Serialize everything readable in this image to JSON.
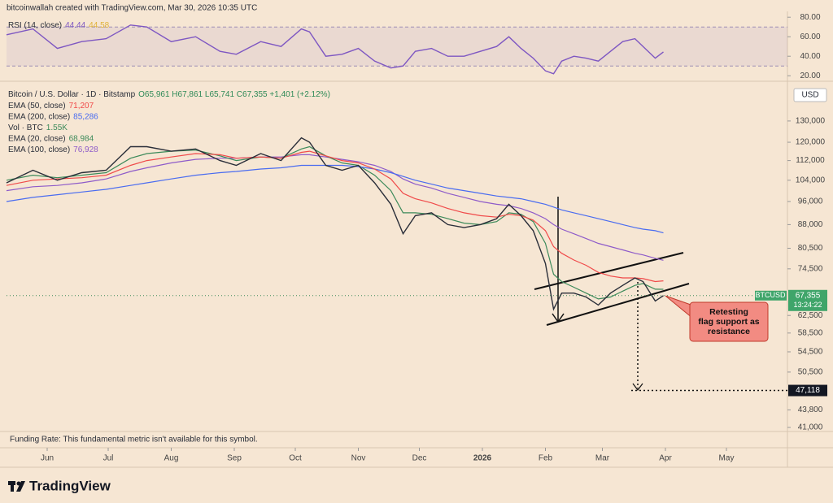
{
  "header": {
    "credit": "bitcoinwallah created with TradingView.com, Mar 30, 2026 10:35 UTC",
    "funding": "Funding Rate: This fundamental metric isn't available for this symbol.",
    "footer": "TradingView"
  },
  "chart_data": [
    {
      "type": "line",
      "title": "Bitcoin / U.S. Dollar · 1D · Bitstamp",
      "ohlc": "O65,961 H67,861 L65,741 C67,355 +1,401 (+2.12%)",
      "volume_legend": {
        "name": "Vol · BTC",
        "value": "1.55K"
      },
      "currency": "USD",
      "log_scale": true,
      "grid": false,
      "x": [
        2,
        15,
        27,
        39,
        51,
        63,
        71,
        83,
        95,
        107,
        115,
        127,
        137,
        147,
        151,
        159,
        167,
        175,
        183,
        191,
        197,
        203,
        211,
        219,
        227,
        235,
        243,
        249,
        255,
        261,
        267,
        271,
        275,
        281,
        287,
        293,
        299,
        305,
        311,
        315,
        321,
        325
      ],
      "xlim": [
        2,
        386
      ],
      "xticks": [
        {
          "value": 22,
          "label": "Jun"
        },
        {
          "value": 52,
          "label": "Jul"
        },
        {
          "value": 83,
          "label": "Aug"
        },
        {
          "value": 114,
          "label": "Sep"
        },
        {
          "value": 144,
          "label": "Oct"
        },
        {
          "value": 175,
          "label": "Nov"
        },
        {
          "value": 205,
          "label": "Dec"
        },
        {
          "value": 236,
          "label": "2026"
        },
        {
          "value": 267,
          "label": "Feb"
        },
        {
          "value": 295,
          "label": "Mar"
        },
        {
          "value": 326,
          "label": "Apr"
        },
        {
          "value": 356,
          "label": "May"
        }
      ],
      "ylim": [
        40500,
        149600
      ],
      "yticks": [
        {
          "value": 130000,
          "label": "130,000"
        },
        {
          "value": 120000,
          "label": "120,000"
        },
        {
          "value": 112000,
          "label": "112,000"
        },
        {
          "value": 104000,
          "label": "104,000"
        },
        {
          "value": 96000,
          "label": "96,000"
        },
        {
          "value": 88000,
          "label": "88,000"
        },
        {
          "value": 80500,
          "label": "80,500"
        },
        {
          "value": 74500,
          "label": "74,500"
        },
        {
          "value": 62500,
          "label": "62,500"
        },
        {
          "value": 58500,
          "label": "58,500"
        },
        {
          "value": 54500,
          "label": "54,500"
        },
        {
          "value": 50500,
          "label": "50,500"
        },
        {
          "value": 43800,
          "label": "43,800"
        },
        {
          "value": 41000,
          "label": "41,000"
        }
      ],
      "series": [
        {
          "name": "BTCUSD",
          "color": "#2a2e39",
          "legend_value": "67,355",
          "countdown": "13:24:22",
          "values": [
            103000,
            108000,
            104000,
            107000,
            108000,
            118000,
            118000,
            116000,
            117000,
            112000,
            110000,
            115000,
            112000,
            122000,
            120000,
            110000,
            108000,
            110000,
            103000,
            95000,
            85000,
            91000,
            92000,
            88000,
            87000,
            88000,
            90000,
            95000,
            91000,
            86000,
            76000,
            64000,
            68000,
            68000,
            67000,
            65000,
            68000,
            70000,
            72000,
            71000,
            66000,
            67355
          ]
        },
        {
          "name": "EMA (50, close)",
          "color": "#f04a4a",
          "legend_value": "71,207",
          "values": [
            102000,
            104000,
            104500,
            105000,
            106000,
            110000,
            112000,
            113500,
            115000,
            114500,
            113000,
            113500,
            113000,
            115500,
            116000,
            114000,
            112000,
            111000,
            108500,
            104500,
            99000,
            97000,
            95500,
            93500,
            92000,
            91000,
            90500,
            91500,
            91000,
            89500,
            86000,
            81000,
            79000,
            77000,
            75500,
            73500,
            72500,
            72000,
            72000,
            71800,
            71000,
            71207
          ]
        },
        {
          "name": "EMA (200, close)",
          "color": "#4a6cf0",
          "legend_value": "85,286",
          "values": [
            96000,
            97500,
            98500,
            99500,
            100500,
            102000,
            103000,
            104500,
            106000,
            107000,
            107500,
            108500,
            109000,
            110000,
            110000,
            110000,
            110000,
            109500,
            108500,
            107000,
            105500,
            104000,
            102500,
            101000,
            100000,
            99000,
            98000,
            97500,
            97000,
            96000,
            95000,
            94000,
            93000,
            92000,
            91000,
            90000,
            89000,
            88000,
            87000,
            86500,
            86000,
            85286
          ]
        },
        {
          "name": "EMA (20, close)",
          "color": "#3c8a5a",
          "legend_value": "68,984",
          "values": [
            104000,
            106000,
            105000,
            106000,
            107000,
            113000,
            115000,
            116000,
            116500,
            114000,
            112000,
            113500,
            113000,
            117000,
            118000,
            114000,
            111000,
            110000,
            106000,
            100000,
            92000,
            92000,
            91500,
            90000,
            88500,
            88000,
            89000,
            92000,
            91500,
            89000,
            82000,
            73000,
            71000,
            69500,
            68000,
            66500,
            67000,
            68500,
            70000,
            70500,
            69000,
            68984
          ]
        },
        {
          "name": "EMA (100, close)",
          "color": "#8e5bc9",
          "legend_value": "76,928",
          "values": [
            100000,
            101500,
            102000,
            103000,
            104500,
            107500,
            109000,
            111000,
            112500,
            113000,
            113000,
            113500,
            113500,
            114500,
            114500,
            113500,
            112500,
            111500,
            110000,
            107500,
            104500,
            102500,
            101000,
            99000,
            97500,
            96000,
            95000,
            94500,
            93500,
            92000,
            90000,
            88000,
            86500,
            85000,
            83500,
            82000,
            81000,
            80000,
            79000,
            78500,
            77500,
            76928
          ]
        }
      ],
      "target": {
        "value": 47118,
        "label": "47,118"
      },
      "annotation": [
        "Retesting",
        "flag support as",
        "resistance"
      ]
    },
    {
      "type": "line",
      "title": "RSI (14, close)",
      "x": [
        2,
        15,
        27,
        39,
        51,
        63,
        71,
        83,
        95,
        107,
        115,
        127,
        137,
        147,
        151,
        159,
        167,
        175,
        183,
        191,
        197,
        203,
        211,
        219,
        227,
        235,
        243,
        249,
        255,
        261,
        267,
        271,
        275,
        281,
        287,
        293,
        299,
        305,
        311,
        315,
        321,
        325
      ],
      "xlim": [
        2,
        386
      ],
      "ylim": [
        16,
        86
      ],
      "yticks": [
        {
          "value": 80,
          "label": "80.00"
        },
        {
          "value": 60,
          "label": "60.00"
        },
        {
          "value": 40,
          "label": "40.00"
        },
        {
          "value": 20,
          "label": "20.00"
        }
      ],
      "band": [
        30,
        70
      ],
      "ma_label": "44.58",
      "series": [
        {
          "name": "RSI",
          "color": "#7e57c2",
          "legend_value": "44.44",
          "values": [
            62,
            68,
            48,
            55,
            58,
            72,
            70,
            55,
            60,
            45,
            42,
            55,
            50,
            68,
            65,
            40,
            42,
            48,
            35,
            28,
            30,
            45,
            48,
            40,
            40,
            45,
            50,
            60,
            48,
            38,
            25,
            22,
            35,
            40,
            38,
            35,
            45,
            55,
            58,
            50,
            38,
            44.44
          ]
        }
      ]
    }
  ]
}
